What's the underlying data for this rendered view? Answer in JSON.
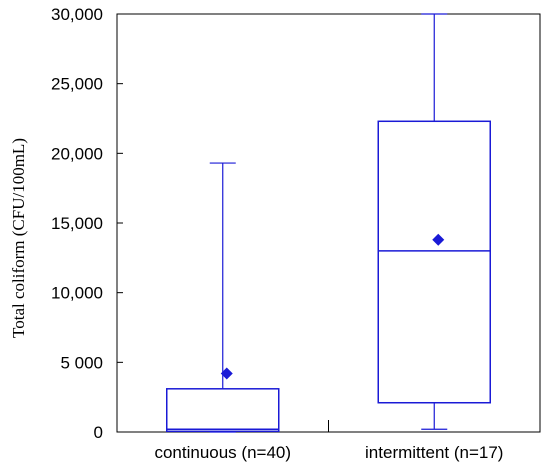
{
  "chart_data": {
    "type": "box",
    "xlabel": "",
    "ylabel": "Total coliform (CFU/100mL)",
    "ylim": [
      0,
      30000
    ],
    "yticks": [
      0,
      5000,
      10000,
      15000,
      20000,
      25000,
      30000
    ],
    "ytick_labels": [
      "0",
      "5 000",
      "10,000",
      "15,000",
      "20,000",
      "25,000",
      "30,000"
    ],
    "grid": false,
    "color": "#1a1ad6",
    "boxes": [
      {
        "label": "continuous (n=40)",
        "min": 0,
        "q1": 50,
        "median": 200,
        "q3": 3100,
        "max": 19300,
        "mean": 4200
      },
      {
        "label": "intermittent (n=17)",
        "min": 200,
        "q1": 2100,
        "median": 13000,
        "q3": 22300,
        "max": 30000,
        "mean": 13800
      }
    ]
  }
}
